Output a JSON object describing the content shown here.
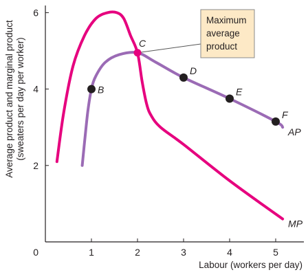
{
  "chart_data": {
    "type": "line",
    "xlabel": "Labour (workers per day)",
    "ylabel_line1": "Average product and marginal product",
    "ylabel_line2": "(sweaters per day per worker)",
    "xlim": [
      0,
      5.5
    ],
    "ylim": [
      0,
      6.5
    ],
    "x_ticks": [
      1,
      2,
      3,
      4,
      5
    ],
    "y_ticks": [
      2,
      4,
      6
    ],
    "origin_label": "0",
    "grid": false,
    "series": [
      {
        "name": "MP",
        "color": "#e6007e",
        "points": [
          [
            0.25,
            2.1
          ],
          [
            0.4,
            3.4
          ],
          [
            0.6,
            4.6
          ],
          [
            0.85,
            5.4
          ],
          [
            1.1,
            5.85
          ],
          [
            1.35,
            6.0
          ],
          [
            1.55,
            6.0
          ],
          [
            1.7,
            5.85
          ],
          [
            1.85,
            5.4
          ],
          [
            2.0,
            4.95
          ],
          [
            2.1,
            4.2
          ],
          [
            2.2,
            3.6
          ],
          [
            2.3,
            3.3
          ],
          [
            2.5,
            3.0
          ],
          [
            3.0,
            2.55
          ],
          [
            4.0,
            1.6
          ],
          [
            5.15,
            0.6
          ]
        ]
      },
      {
        "name": "AP",
        "color": "#9b6bb5",
        "points": [
          [
            0.8,
            2.0
          ],
          [
            0.85,
            2.6
          ],
          [
            0.92,
            3.4
          ],
          [
            1.0,
            4.0
          ],
          [
            1.1,
            4.35
          ],
          [
            1.3,
            4.7
          ],
          [
            1.6,
            4.9
          ],
          [
            2.0,
            4.95
          ],
          [
            2.4,
            4.7
          ],
          [
            3.0,
            4.3
          ],
          [
            4.0,
            3.75
          ],
          [
            5.0,
            3.15
          ],
          [
            5.15,
            3.0
          ]
        ]
      }
    ],
    "points": [
      {
        "label": "B",
        "x": 1,
        "y": 4.0
      },
      {
        "label": "C",
        "x": 2,
        "y": 4.95
      },
      {
        "label": "D",
        "x": 3,
        "y": 4.3
      },
      {
        "label": "E",
        "x": 4,
        "y": 3.75
      },
      {
        "label": "F",
        "x": 5,
        "y": 3.15
      }
    ],
    "callout": {
      "lines": [
        "Maximum",
        "average",
        "product"
      ],
      "fill": "#fde9c6",
      "border": "#8a8a8a"
    }
  }
}
